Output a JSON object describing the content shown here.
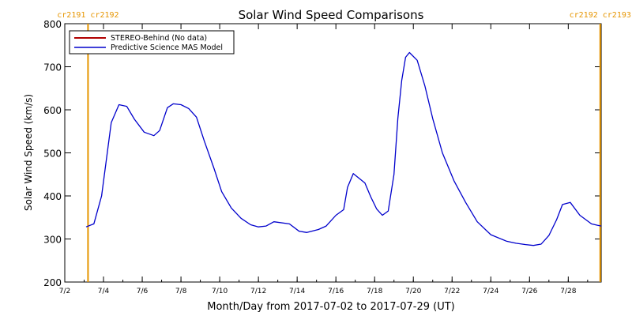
{
  "chart_data": {
    "type": "line",
    "title": "Solar Wind Speed Comparisons",
    "xlabel": "Month/Day from 2017-07-02 to 2017-07-29 (UT)",
    "ylabel": "Solar Wind Speed (km/s)",
    "x_range_days": [
      0,
      27.7
    ],
    "ylim": [
      200,
      800
    ],
    "y_ticks": [
      200,
      300,
      400,
      500,
      600,
      700,
      800
    ],
    "x_ticks": [
      {
        "day": 0,
        "label": "7/2"
      },
      {
        "day": 2,
        "label": "7/4"
      },
      {
        "day": 4,
        "label": "7/6"
      },
      {
        "day": 6,
        "label": "7/8"
      },
      {
        "day": 8,
        "label": "7/10"
      },
      {
        "day": 10,
        "label": "7/12"
      },
      {
        "day": 12,
        "label": "7/14"
      },
      {
        "day": 14,
        "label": "7/16"
      },
      {
        "day": 16,
        "label": "7/18"
      },
      {
        "day": 18,
        "label": "7/20"
      },
      {
        "day": 20,
        "label": "7/22"
      },
      {
        "day": 22,
        "label": "7/24"
      },
      {
        "day": 24,
        "label": "7/26"
      },
      {
        "day": 26,
        "label": "7/28"
      }
    ],
    "legend": {
      "placement": "top-left",
      "entries": [
        {
          "label": "STEREO-Behind (No data)",
          "color": "#b00000"
        },
        {
          "label": "Predictive Science MAS Model",
          "color": "#0000cc"
        }
      ]
    },
    "rotation_markers": [
      {
        "day": 1.2,
        "color": "#e69500",
        "left_label": "cr2191",
        "right_label": "cr2192"
      },
      {
        "day": 27.65,
        "color": "#e69500",
        "left_label": "cr2192",
        "right_label": "cr2193"
      }
    ],
    "series": [
      {
        "name": "Predictive Science MAS Model",
        "color": "#0000cc",
        "x": [
          1.1,
          1.5,
          1.9,
          2.4,
          2.8,
          3.2,
          3.6,
          4.1,
          4.6,
          4.9,
          5.3,
          5.6,
          6.0,
          6.4,
          6.8,
          7.2,
          7.7,
          8.1,
          8.6,
          9.1,
          9.6,
          10.0,
          10.4,
          10.8,
          11.6,
          12.1,
          12.5,
          13.1,
          13.5,
          14.0,
          14.4,
          14.6,
          14.9,
          15.5,
          15.8,
          16.1,
          16.4,
          16.7,
          17.0,
          17.2,
          17.4,
          17.6,
          17.8,
          18.2,
          18.6,
          19.0,
          19.5,
          20.1,
          20.7,
          21.3,
          22.0,
          22.8,
          23.3,
          23.8,
          24.2,
          24.6,
          25.0,
          25.4,
          25.7,
          26.1,
          26.6,
          27.2,
          27.5,
          27.7
        ],
        "values": [
          328,
          335,
          400,
          570,
          612,
          608,
          578,
          548,
          540,
          552,
          605,
          614,
          612,
          603,
          583,
          528,
          465,
          410,
          372,
          348,
          333,
          328,
          330,
          340,
          335,
          318,
          315,
          322,
          330,
          355,
          368,
          420,
          452,
          430,
          398,
          370,
          355,
          365,
          450,
          580,
          668,
          722,
          733,
          715,
          655,
          580,
          500,
          435,
          385,
          340,
          310,
          295,
          290,
          287,
          285,
          288,
          308,
          345,
          380,
          385,
          355,
          335,
          332,
          330
        ]
      }
    ]
  }
}
